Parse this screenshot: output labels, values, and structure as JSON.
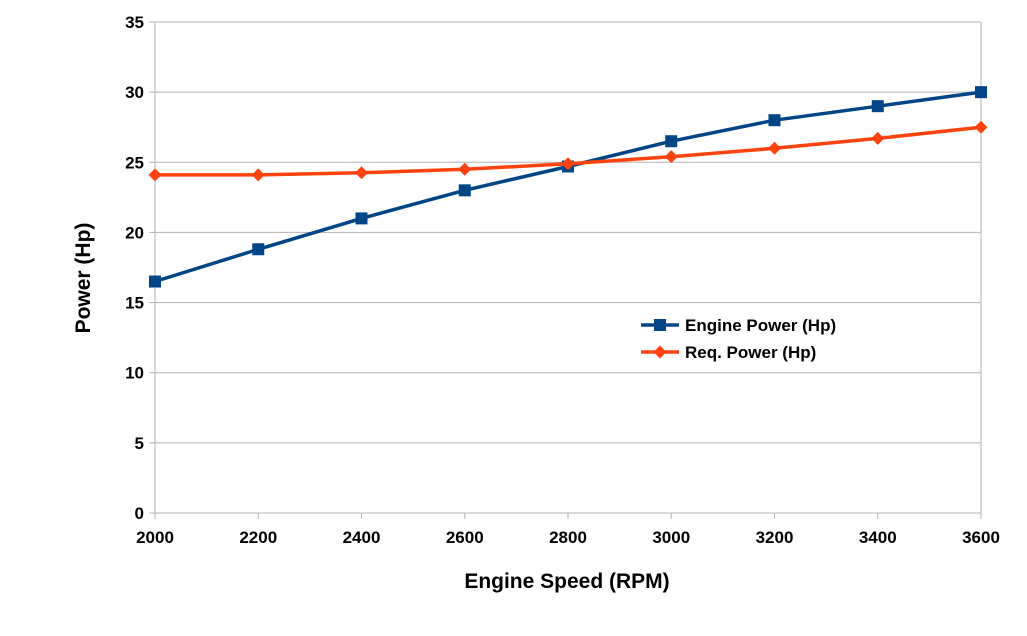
{
  "chart_data": {
    "type": "line",
    "title": "",
    "xlabel": "Engine Speed (RPM)",
    "ylabel": "Power (Hp)",
    "x": [
      2000,
      2200,
      2400,
      2600,
      2800,
      3000,
      3200,
      3400,
      3600
    ],
    "x_tick_labels": [
      "2000",
      "2200",
      "2400",
      "2600",
      "2800",
      "3000",
      "3200",
      "3400",
      "3600"
    ],
    "y_tick_labels": [
      "0",
      "5",
      "10",
      "15",
      "20",
      "25",
      "30",
      "35"
    ],
    "xlim": [
      2000,
      3600
    ],
    "ylim": [
      0,
      35
    ],
    "grid": "horizontal",
    "legend_position": "right-center",
    "series": [
      {
        "name": "Engine Power (Hp)",
        "color": "#004586",
        "marker": "square",
        "values": [
          16.5,
          18.8,
          21.0,
          23.0,
          24.7,
          26.5,
          28.0,
          29.0,
          30.0
        ]
      },
      {
        "name": "Req. Power (Hp)",
        "color": "#ff420e",
        "marker": "diamond",
        "values": [
          24.1,
          24.1,
          24.25,
          24.5,
          24.9,
          25.4,
          26.0,
          26.7,
          27.5
        ]
      }
    ]
  }
}
